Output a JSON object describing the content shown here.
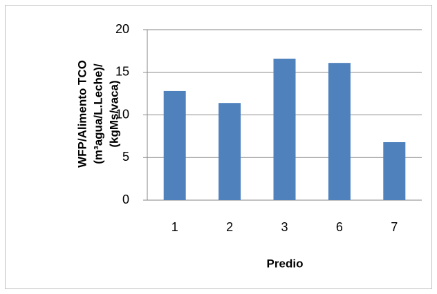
{
  "chart_data": {
    "type": "bar",
    "ylabel": [
      "WFP/Alimento TCO",
      "(m³agua/L.Leche)/",
      "(kgMs/vaca)"
    ],
    "xlabel": "Predio",
    "categories": [
      "1",
      "2",
      "3",
      "6",
      "7"
    ],
    "values": [
      12.8,
      11.4,
      16.6,
      16.1,
      6.8
    ],
    "color": "#4f81bd",
    "ylim": [
      0,
      20
    ],
    "yticks": [
      0,
      5,
      10,
      15,
      20
    ],
    "grid": true
  }
}
